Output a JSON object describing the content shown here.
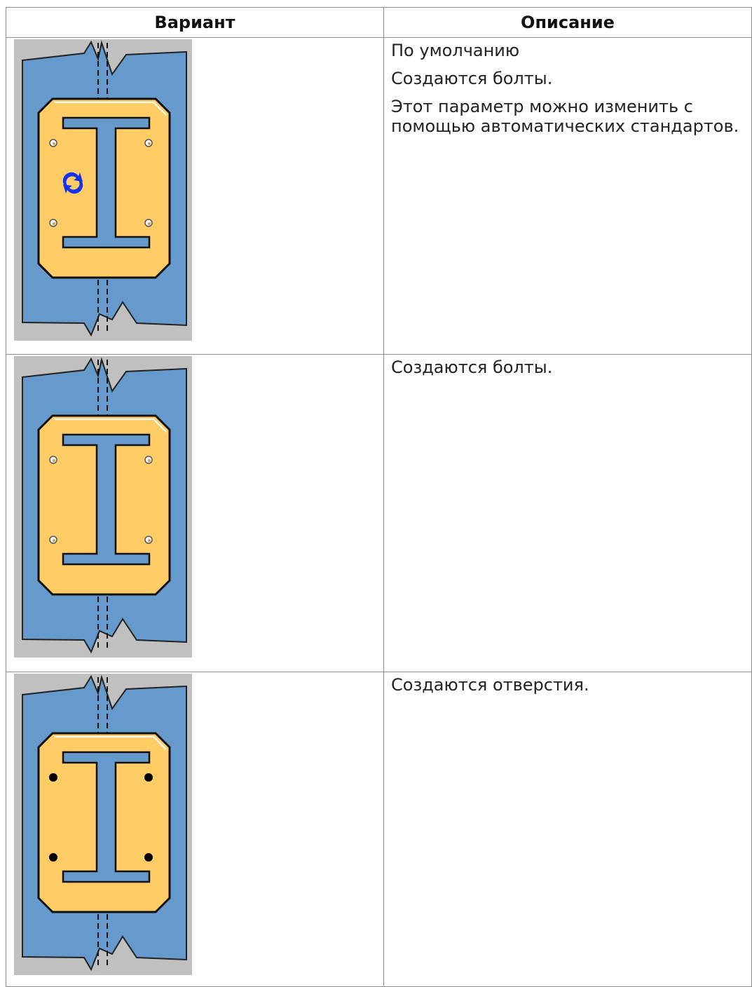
{
  "table": {
    "header": [
      "Вариант",
      "Описание"
    ],
    "rows": [
      {
        "description": [
          "По умолчанию",
          "Создаются болты.",
          "Этот параметр можно изменить с помощью автоматических стандартов."
        ]
      },
      {
        "description": [
          "Создаются болты."
        ]
      },
      {
        "description": [
          "Создаются отверстия."
        ]
      }
    ]
  }
}
